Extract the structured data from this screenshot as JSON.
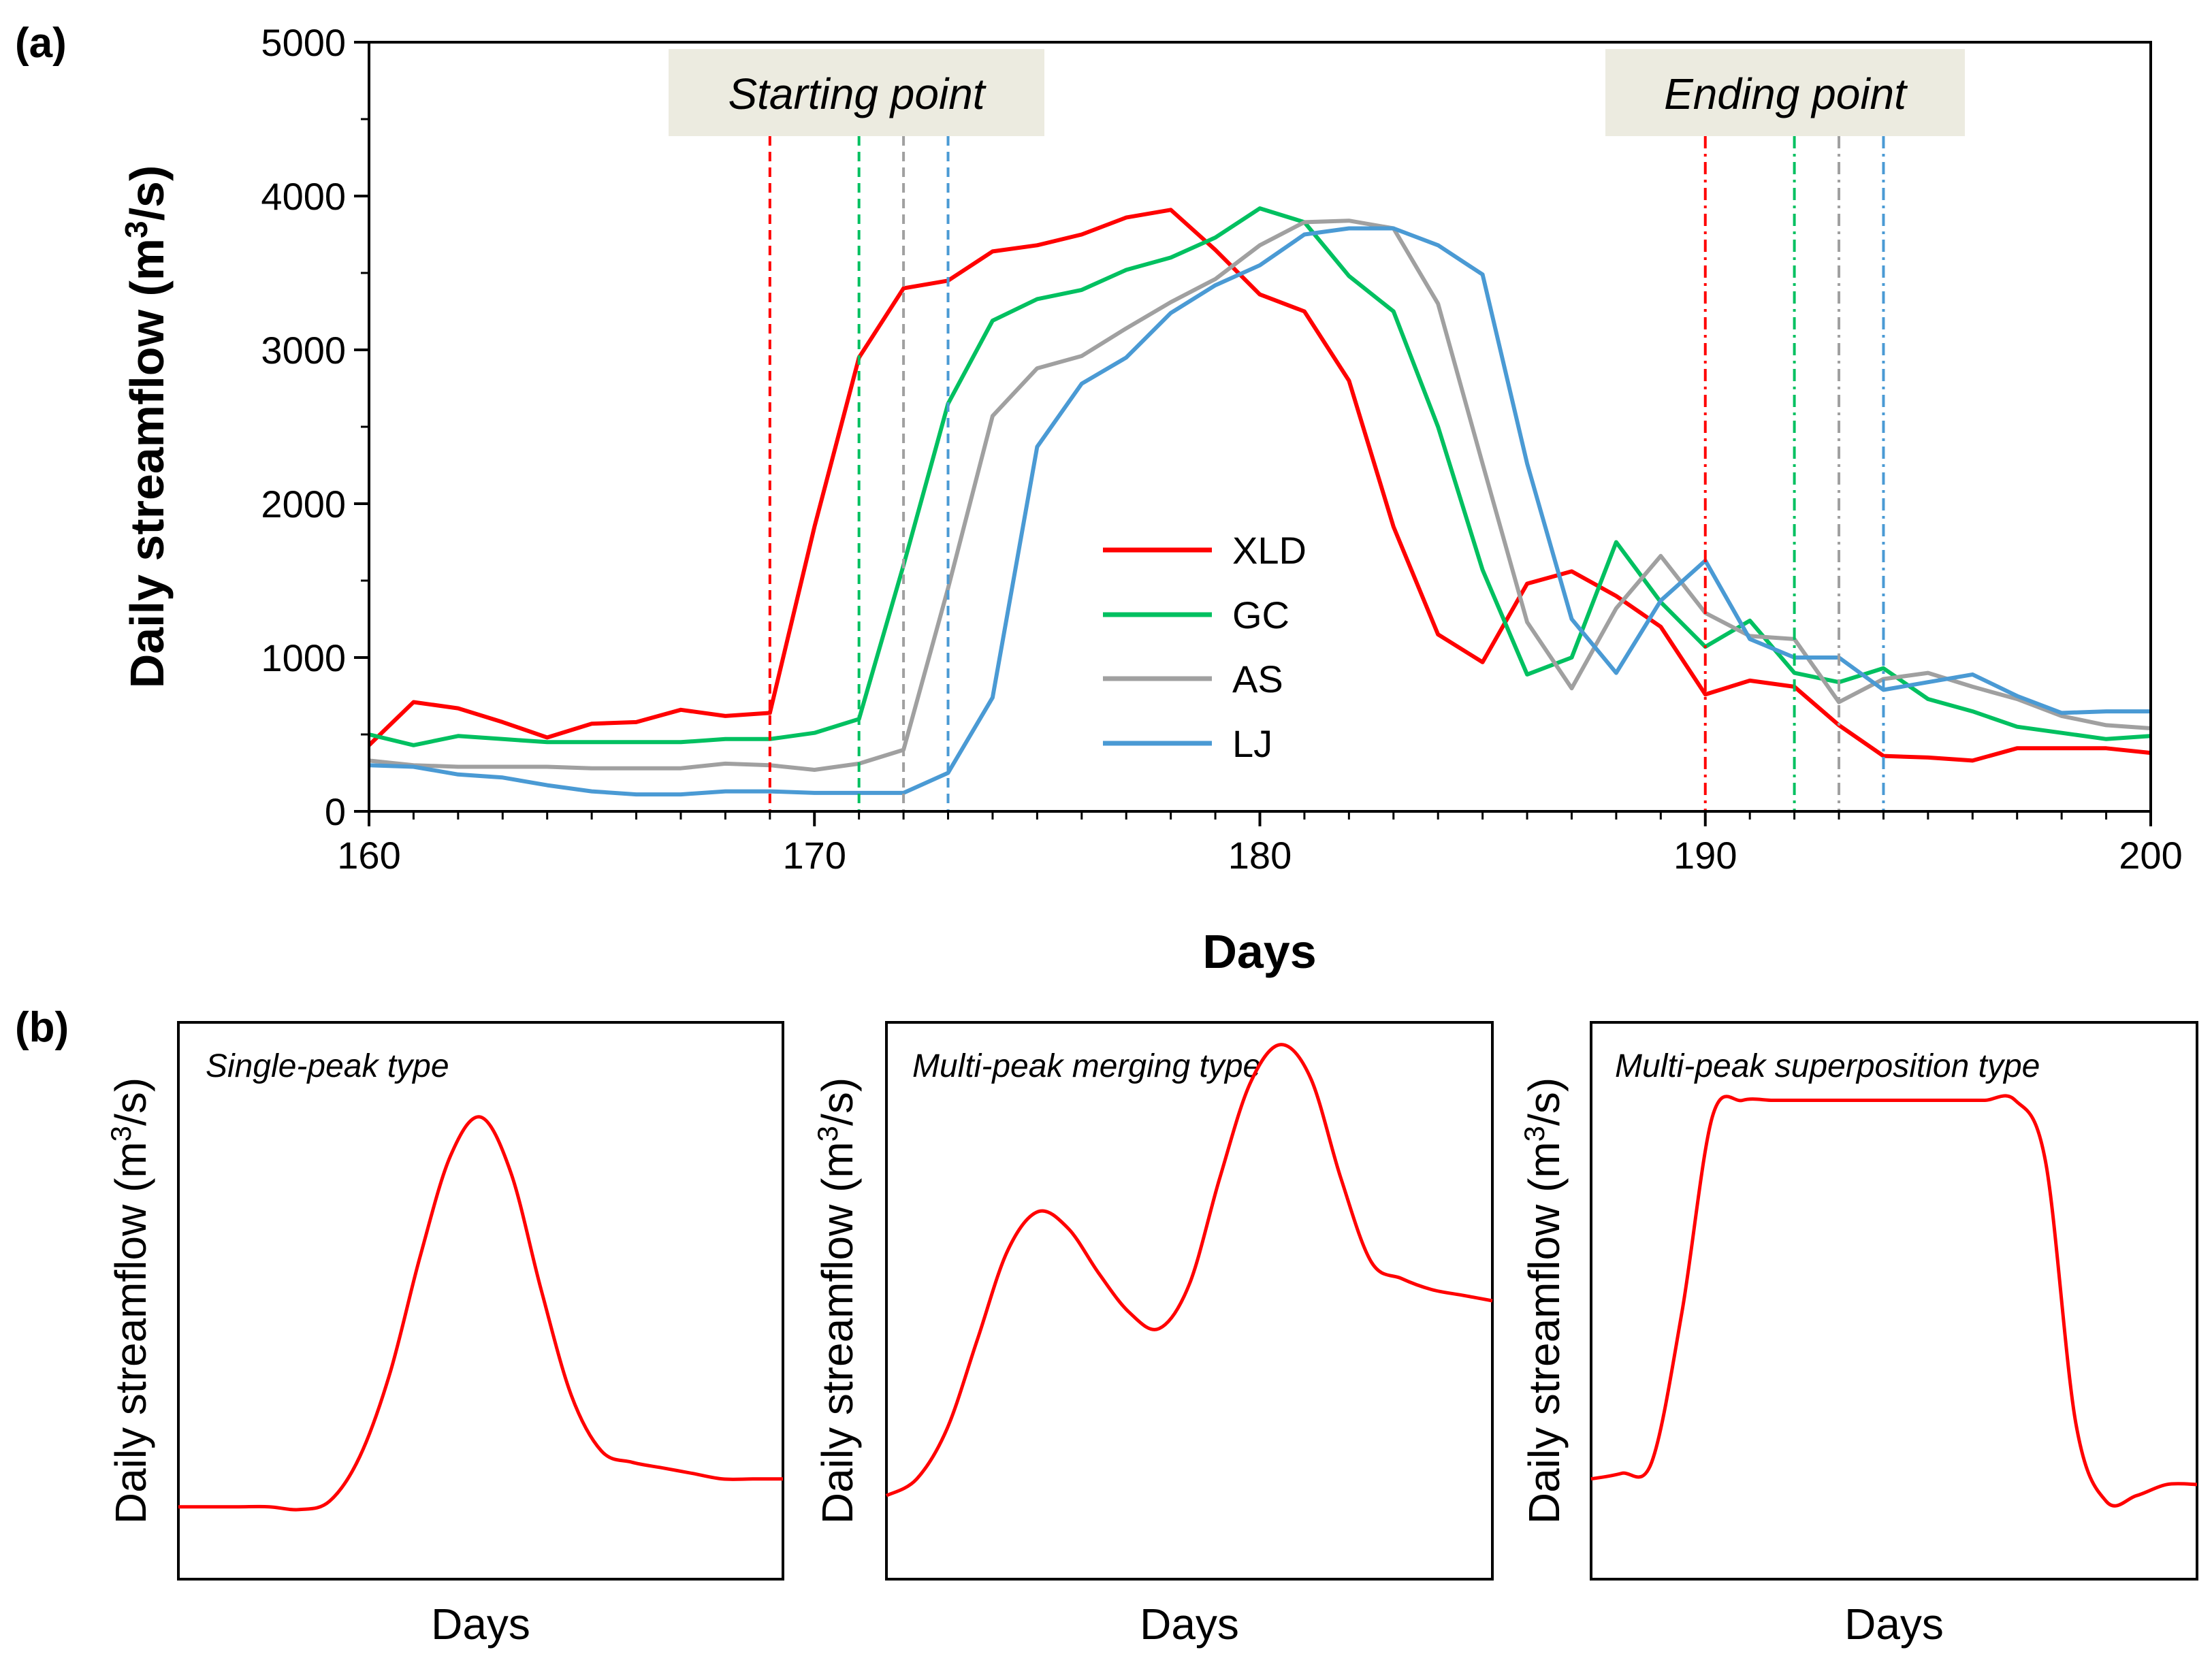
{
  "chart_data": [
    {
      "panel": "(a)",
      "type": "line",
      "title": "",
      "xlabel": "Days",
      "ylabel_parts": [
        "Daily streamflow (m",
        "3",
        "/s)"
      ],
      "xlim": [
        160,
        200
      ],
      "ylim": [
        0,
        5000
      ],
      "xticks": [
        160,
        170,
        180,
        190,
        200
      ],
      "yticks": [
        0,
        1000,
        2000,
        3000,
        4000,
        5000
      ],
      "grid": false,
      "legend_position": "center",
      "annotations": [
        "Starting point",
        "Ending point"
      ],
      "x": [
        160,
        161,
        162,
        163,
        164,
        165,
        166,
        167,
        168,
        169,
        170,
        171,
        172,
        173,
        174,
        175,
        176,
        177,
        178,
        179,
        180,
        181,
        182,
        183,
        184,
        185,
        186,
        187,
        188,
        189,
        190,
        191,
        192,
        193,
        194,
        195,
        196,
        197,
        198,
        199,
        200
      ],
      "series": [
        {
          "name": "XLD",
          "color": "#ff0000",
          "values": [
            430,
            710,
            670,
            580,
            480,
            570,
            580,
            660,
            620,
            640,
            1850,
            2950,
            3400,
            3450,
            3640,
            3680,
            3750,
            3860,
            3910,
            3650,
            3360,
            3250,
            2800,
            1850,
            1150,
            970,
            1480,
            1560,
            1400,
            1200,
            760,
            850,
            810,
            560,
            360,
            350,
            330,
            410,
            410,
            410,
            380
          ]
        },
        {
          "name": "GC",
          "color": "#00c060",
          "values": [
            500,
            430,
            490,
            470,
            450,
            450,
            450,
            450,
            470,
            470,
            510,
            600,
            1600,
            2650,
            3190,
            3330,
            3390,
            3520,
            3600,
            3730,
            3920,
            3830,
            3480,
            3250,
            2500,
            1570,
            890,
            1000,
            1750,
            1360,
            1070,
            1240,
            900,
            840,
            930,
            730,
            650,
            550,
            510,
            470,
            490
          ]
        },
        {
          "name": "AS",
          "color": "#a0a0a0",
          "values": [
            330,
            300,
            290,
            290,
            290,
            280,
            280,
            280,
            310,
            300,
            270,
            310,
            400,
            1450,
            2570,
            2880,
            2960,
            3140,
            3310,
            3460,
            3680,
            3830,
            3840,
            3790,
            3300,
            2260,
            1230,
            800,
            1320,
            1660,
            1290,
            1140,
            1120,
            710,
            860,
            900,
            810,
            730,
            620,
            560,
            540
          ]
        },
        {
          "name": "LJ",
          "color": "#4a9ad4",
          "values": [
            300,
            290,
            240,
            220,
            170,
            130,
            110,
            110,
            130,
            130,
            120,
            120,
            120,
            250,
            740,
            2370,
            2780,
            2950,
            3240,
            3420,
            3550,
            3750,
            3790,
            3790,
            3680,
            3490,
            2260,
            1250,
            900,
            1370,
            1630,
            1120,
            1000,
            1000,
            790,
            840,
            890,
            750,
            640,
            650,
            650
          ]
        }
      ],
      "starting_points": [
        {
          "series": "XLD",
          "day": 169
        },
        {
          "series": "GC",
          "day": 171
        },
        {
          "series": "AS",
          "day": 172
        },
        {
          "series": "LJ",
          "day": 173
        }
      ],
      "ending_points": [
        {
          "series": "XLD",
          "day": 190
        },
        {
          "series": "GC",
          "day": 192
        },
        {
          "series": "AS",
          "day": 193
        },
        {
          "series": "LJ",
          "day": 194
        }
      ]
    },
    {
      "panel": "(b)",
      "type": "line",
      "title": "Single-peak type",
      "xlabel": "Days",
      "ylabel_parts": [
        "Daily streamflow (m",
        "3",
        "/s)"
      ],
      "color": "#ff0000",
      "ylim": [
        0,
        1
      ],
      "x": [
        0.0,
        0.05,
        0.1,
        0.15,
        0.2,
        0.25,
        0.3,
        0.35,
        0.4,
        0.45,
        0.5,
        0.55,
        0.6,
        0.65,
        0.7,
        0.75,
        0.8,
        0.85,
        0.9,
        0.95,
        1.0
      ],
      "values": [
        0.13,
        0.13,
        0.13,
        0.13,
        0.125,
        0.14,
        0.22,
        0.37,
        0.58,
        0.76,
        0.83,
        0.73,
        0.52,
        0.33,
        0.23,
        0.21,
        0.2,
        0.19,
        0.18,
        0.18,
        0.18
      ]
    },
    {
      "panel": "(b)",
      "type": "line",
      "title": "Multi-peak merging type",
      "xlabel": "Days",
      "ylabel_parts": [
        "Daily streamflow (m",
        "3",
        "/s)"
      ],
      "color": "#ff0000",
      "ylim": [
        0,
        1
      ],
      "x": [
        0.0,
        0.05,
        0.1,
        0.15,
        0.2,
        0.25,
        0.3,
        0.35,
        0.4,
        0.45,
        0.5,
        0.55,
        0.6,
        0.65,
        0.7,
        0.75,
        0.8,
        0.85,
        0.9,
        0.95,
        1.0
      ],
      "values": [
        0.15,
        0.18,
        0.27,
        0.43,
        0.59,
        0.66,
        0.63,
        0.55,
        0.48,
        0.45,
        0.53,
        0.72,
        0.89,
        0.96,
        0.9,
        0.72,
        0.57,
        0.54,
        0.52,
        0.51,
        0.5
      ]
    },
    {
      "panel": "(b)",
      "type": "line",
      "title": "Multi-peak superposition type",
      "xlabel": "Days",
      "ylabel_parts": [
        "Daily streamflow (m",
        "3",
        "/s)"
      ],
      "color": "#ff0000",
      "ylim": [
        0,
        1
      ],
      "x": [
        0.0,
        0.05,
        0.1,
        0.15,
        0.2,
        0.25,
        0.3,
        0.35,
        0.4,
        0.45,
        0.5,
        0.55,
        0.6,
        0.65,
        0.7,
        0.75,
        0.8,
        0.85,
        0.9,
        0.95,
        1.0
      ],
      "values": [
        0.18,
        0.19,
        0.21,
        0.48,
        0.83,
        0.86,
        0.86,
        0.86,
        0.86,
        0.86,
        0.86,
        0.86,
        0.86,
        0.86,
        0.86,
        0.75,
        0.28,
        0.14,
        0.15,
        0.17,
        0.17
      ]
    }
  ]
}
